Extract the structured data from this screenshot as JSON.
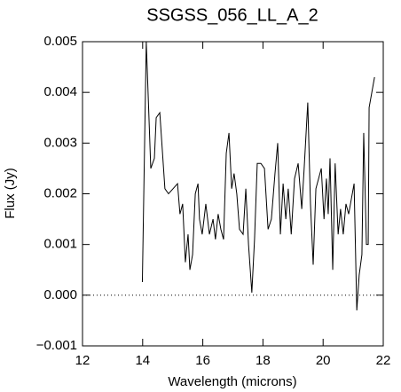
{
  "chart_data": {
    "type": "line",
    "title": "SSGSS_056_LL_A_2",
    "x_label": "Wavelength (microns)",
    "y_label": "Flux (Jy)",
    "xlim": [
      12,
      22
    ],
    "xticks": [
      12,
      14,
      16,
      18,
      20,
      22
    ],
    "ylim": [
      -0.001,
      0.005
    ],
    "yticks": [
      {
        "value": -0.001,
        "label": "−0.001"
      },
      {
        "value": 0,
        "label": "0.000"
      },
      0.001,
      0.002,
      0.003,
      0.004,
      0.005
    ],
    "hline": 0,
    "series": [
      {
        "color": "#000000",
        "x": [
          13.99,
          14.12,
          14.27,
          14.39,
          14.45,
          14.57,
          14.74,
          14.86,
          15.01,
          15.16,
          15.24,
          15.33,
          15.42,
          15.51,
          15.57,
          15.66,
          15.75,
          15.84,
          15.89,
          15.98,
          16.1,
          16.22,
          16.34,
          16.42,
          16.51,
          16.6,
          16.69,
          16.78,
          16.87,
          16.96,
          17.04,
          17.13,
          17.22,
          17.34,
          17.43,
          17.52,
          17.63,
          17.72,
          17.81,
          17.93,
          18.05,
          18.17,
          18.28,
          18.4,
          18.49,
          18.58,
          18.67,
          18.76,
          18.84,
          18.94,
          19.05,
          19.17,
          19.29,
          19.37,
          19.49,
          19.58,
          19.67,
          19.76,
          19.85,
          19.94,
          20.03,
          20.11,
          20.17,
          20.23,
          20.32,
          20.4,
          20.5,
          20.58,
          20.67,
          20.76,
          20.85,
          20.94,
          21.03,
          21.12,
          21.2,
          21.29,
          21.35,
          21.44,
          21.5,
          21.53,
          21.71
        ],
        "values": [
          0.00026,
          0.005,
          0.0025,
          0.0027,
          0.0035,
          0.0036,
          0.0021,
          0.002,
          0.0021,
          0.0022,
          0.0016,
          0.0018,
          0.00065,
          0.0012,
          0.0005,
          0.0008,
          0.002,
          0.0022,
          0.0015,
          0.0012,
          0.0018,
          0.0012,
          0.0015,
          0.0011,
          0.0016,
          0.0013,
          0.0011,
          0.0028,
          0.0032,
          0.0021,
          0.0024,
          0.002,
          0.0013,
          0.0012,
          0.0021,
          0.001,
          5e-05,
          0.0011,
          0.0026,
          0.0026,
          0.0025,
          0.0013,
          0.0015,
          0.0024,
          0.003,
          0.0012,
          0.0022,
          0.0015,
          0.0021,
          0.0012,
          0.0023,
          0.0026,
          0.0017,
          0.0025,
          0.0038,
          0.0018,
          0.0006,
          0.0021,
          0.0023,
          0.0025,
          0.0015,
          0.0023,
          0.0016,
          0.0027,
          0.0005,
          0.0026,
          0.0012,
          0.0017,
          0.0012,
          0.0018,
          0.0016,
          0.0019,
          0.0022,
          -0.0003,
          0.0004,
          0.0008,
          0.0032,
          0.001,
          0.001,
          0.0037,
          0.0043
        ]
      }
    ]
  }
}
